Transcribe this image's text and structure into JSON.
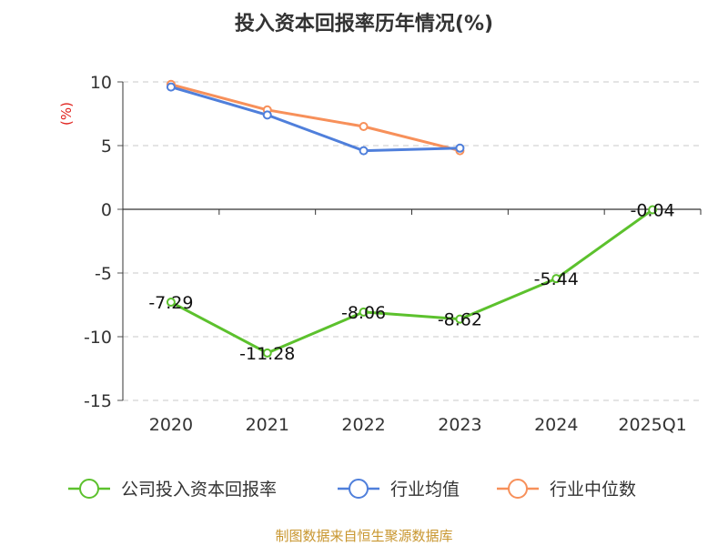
{
  "chart_data": {
    "type": "line",
    "title": "投入资本回报率历年情况(%)",
    "ylabel": "(%)",
    "categories": [
      "2020",
      "2021",
      "2022",
      "2023",
      "2024",
      "2025Q1"
    ],
    "ylim": [
      -15,
      10
    ],
    "yticks": [
      10,
      5,
      0,
      -5,
      -10,
      -15
    ],
    "grid": true,
    "legend_position": "bottom",
    "series": [
      {
        "name": "公司投入资本回报率",
        "color": "#5cc12d",
        "values": [
          -7.29,
          -11.28,
          -8.06,
          -8.62,
          -5.44,
          -0.04
        ],
        "labels": [
          "-7.29",
          "-11.28",
          "-8.06",
          "-8.62",
          "-5.44",
          "-0.04"
        ]
      },
      {
        "name": "行业均值",
        "color": "#4f7fdb",
        "values": [
          9.6,
          7.4,
          4.6,
          4.8,
          null,
          null
        ]
      },
      {
        "name": "行业中位数",
        "color": "#f7905a",
        "values": [
          9.8,
          7.8,
          6.5,
          4.6,
          null,
          null
        ]
      }
    ]
  },
  "source": "制图数据来自恒生聚源数据库"
}
